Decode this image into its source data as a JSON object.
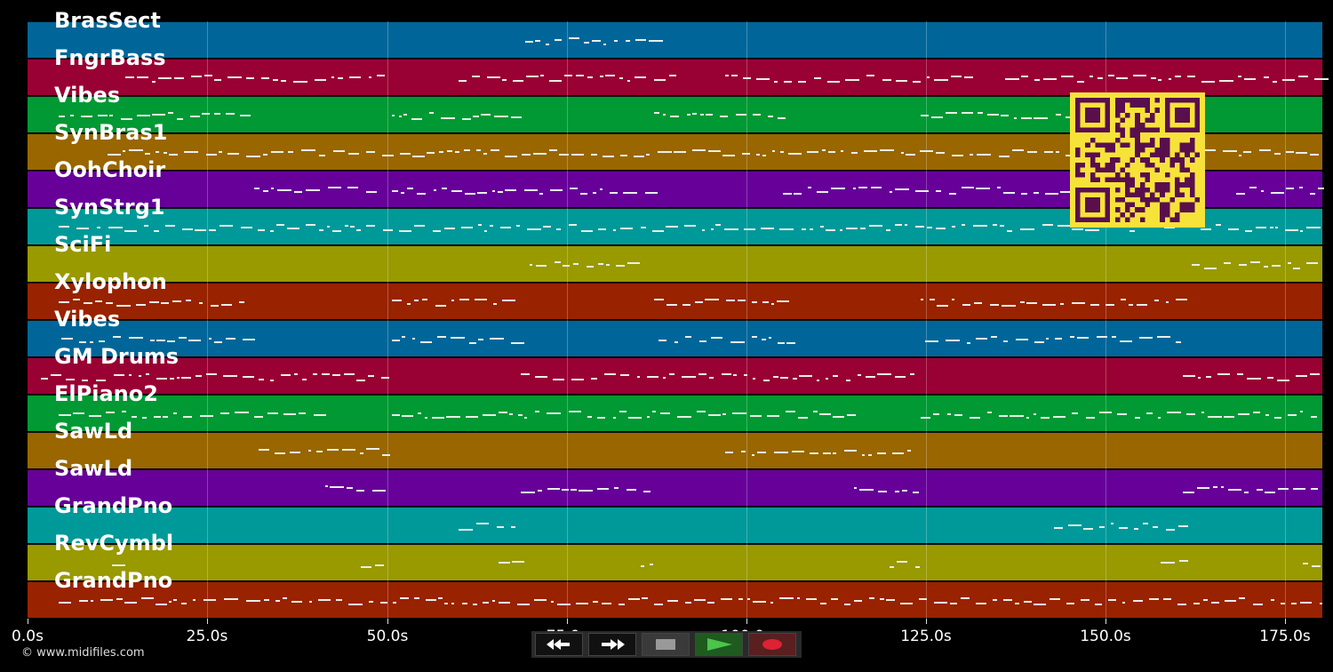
{
  "tracks": [
    {
      "label": "BrasSect",
      "color": "#006699"
    },
    {
      "label": "FngrBass",
      "color": "#990033"
    },
    {
      "label": "Vibes",
      "color": "#009933"
    },
    {
      "label": "SynBras1",
      "color": "#996600"
    },
    {
      "label": "OohChoir",
      "color": "#660099"
    },
    {
      "label": "SynStrg1",
      "color": "#009999"
    },
    {
      "label": "SciFi",
      "color": "#999900"
    },
    {
      "label": "Xylophon",
      "color": "#992200"
    },
    {
      "label": "Vibes",
      "color": "#006699"
    },
    {
      "label": "GM Drums",
      "color": "#990033"
    },
    {
      "label": "ElPiano2",
      "color": "#009933"
    },
    {
      "label": "SawLd",
      "color": "#996600"
    },
    {
      "label": "SawLd",
      "color": "#660099"
    },
    {
      "label": "GrandPno",
      "color": "#009999"
    },
    {
      "label": "RevCymbl",
      "color": "#999900"
    },
    {
      "label": "GrandPno",
      "color": "#992200"
    }
  ],
  "time_axis": {
    "ticks": [
      "0.0s",
      "25.0s",
      "50.0s",
      "75.0s",
      "100.0s",
      "125.0s",
      "150.0s",
      "175.0s"
    ]
  },
  "copyright": "© www.midifiles.com",
  "transport": {
    "rewind": "rewind-icon",
    "fast_forward": "fast-forward-icon",
    "stop": "stop-icon",
    "play": "play-icon",
    "record": "record-icon"
  },
  "qr": "qr-code"
}
